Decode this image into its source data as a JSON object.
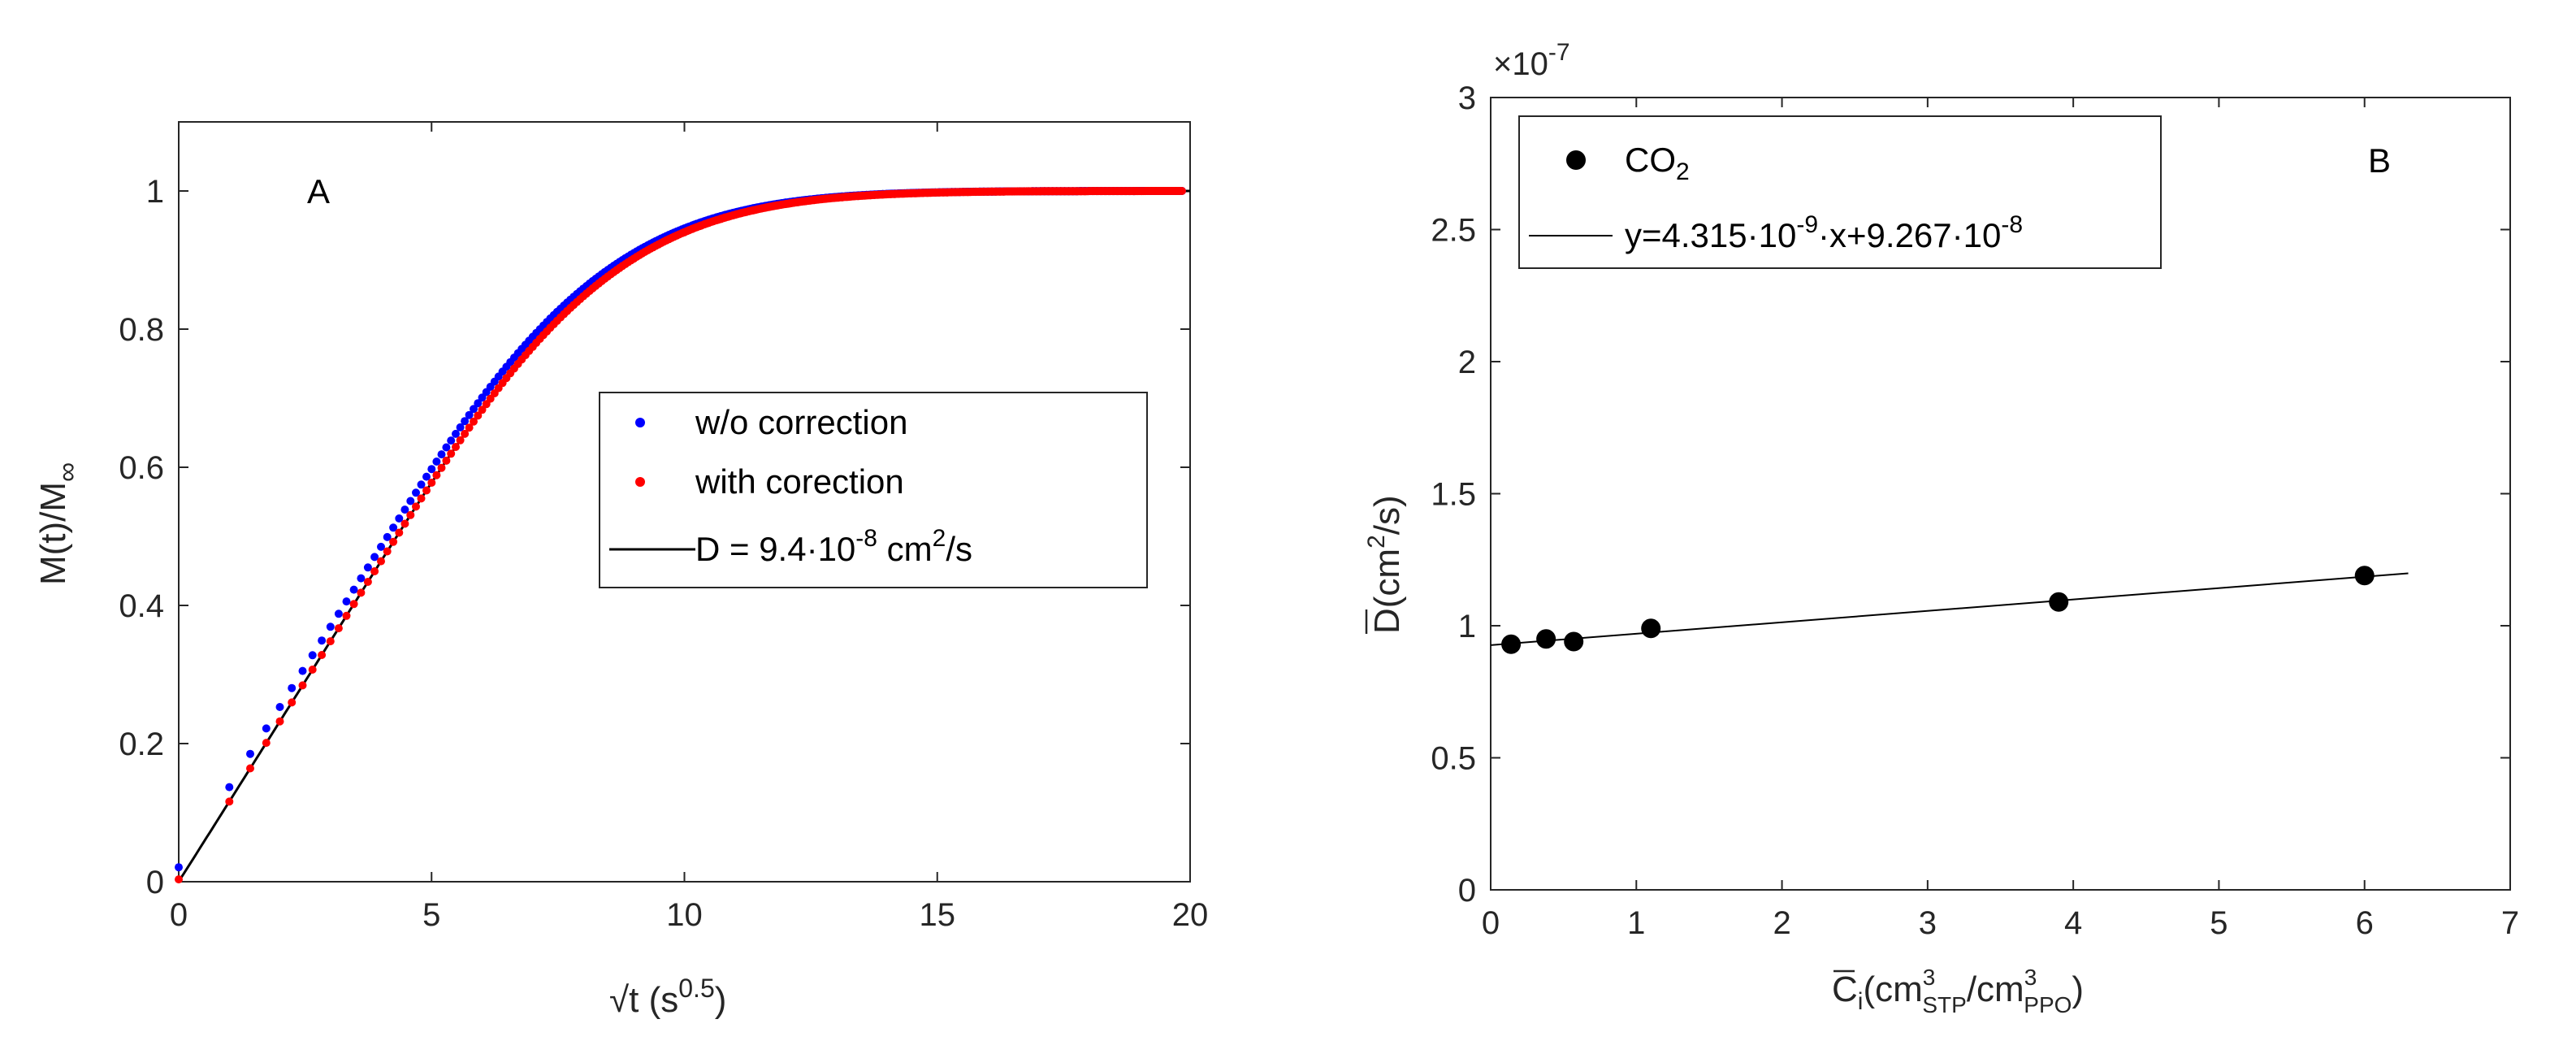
{
  "chart_data": [
    {
      "type": "scatter",
      "panel_label": "A",
      "xlabel": "√t (s",
      "xlabel_sup": "0.5",
      "xlabel_end": ")",
      "ylabel": "M(t)/M",
      "ylabel_sub": "∞",
      "xlim": [
        0,
        20
      ],
      "ylim": [
        0,
        1.1
      ],
      "xticks": [
        0,
        5,
        10,
        15,
        20
      ],
      "yticks": [
        0,
        0.2,
        0.4,
        0.6,
        0.8,
        1
      ],
      "model": {
        "name": "fickian",
        "D_scale": 0.0261,
        "comment": "M/Minf = 1 - 8/pi^2 * sum exp(-(2n+1)^2 pi^2 k t)"
      },
      "series": [
        {
          "name": "w/o correction",
          "color": "#0000ff",
          "x_start": 0.0,
          "x_step": 0.3,
          "count": 68,
          "shift": -0.25
        },
        {
          "name": "with corection",
          "color": "#ff0000",
          "x_start": 0.0,
          "x_step": 0.3,
          "count": 68,
          "shift": 0.0
        },
        {
          "name": "D = 9.4·10",
          "name_sup": "-8",
          "name_end": " cm",
          "name_sup2": "2",
          "name_end2": "/s",
          "color": "#000000",
          "kind": "line"
        }
      ],
      "legend_position": "center-right"
    },
    {
      "type": "scatter",
      "panel_label": "B",
      "xlabel": "C",
      "xlabel_sub": "i",
      "xlabel_rest": "(cm",
      "xlabel_rest_sup": "3",
      "xlabel_rest_sub": "STP",
      "xlabel_rest_mid": "/cm",
      "xlabel_rest_sup2": "3",
      "xlabel_rest_sub2": "PPO",
      "xlabel_end": ")",
      "ylabel": "D",
      "ylabel_rest": "(cm",
      "ylabel_sup": "2",
      "ylabel_end": "/s)",
      "exponent_label": "×10",
      "exponent_sup": "-7",
      "xlim": [
        0,
        7
      ],
      "ylim": [
        0,
        3
      ],
      "xticks": [
        0,
        1,
        2,
        3,
        4,
        5,
        6,
        7
      ],
      "yticks": [
        0,
        0.5,
        1,
        1.5,
        2,
        2.5,
        3
      ],
      "points": {
        "name": "CO",
        "name_sub": "2",
        "x": [
          0.14,
          0.38,
          0.57,
          1.1,
          3.9,
          6.0
        ],
        "y": [
          0.93,
          0.95,
          0.94,
          0.99,
          1.09,
          1.19
        ]
      },
      "fit": {
        "label": "y=4.315·10",
        "label_sup1": "-9",
        "label_mid": "·x+9.267·10",
        "label_sup2": "-8",
        "slope": 0.04315,
        "intercept": 0.9267,
        "x_range": [
          0.0,
          6.3
        ]
      },
      "legend_position": "top-left"
    }
  ]
}
